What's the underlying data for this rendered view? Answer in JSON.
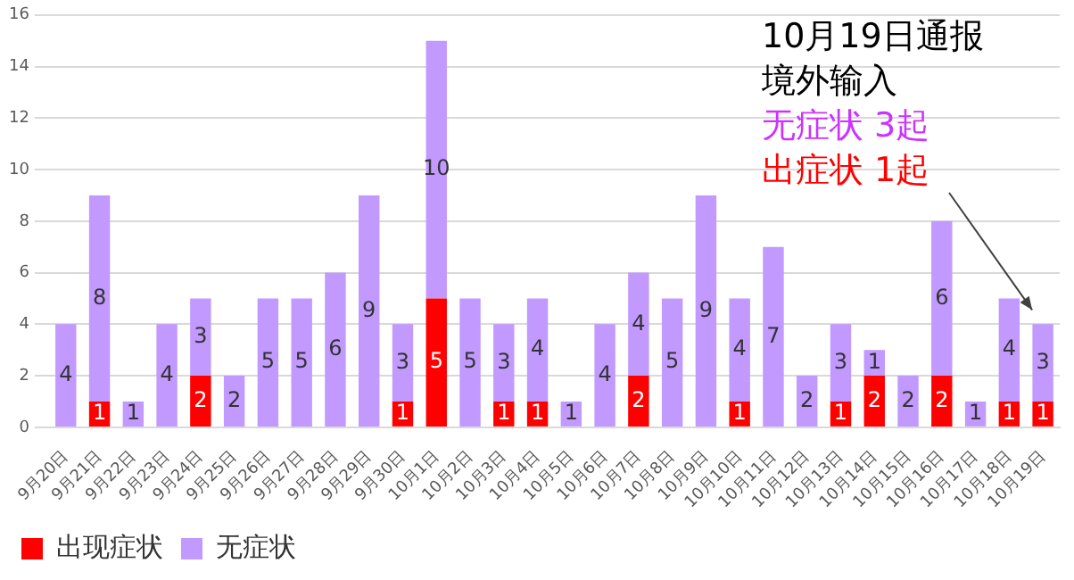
{
  "chart_data": {
    "type": "bar",
    "stacked": true,
    "data_labels": true,
    "grid": "y",
    "legend": "bottom left",
    "categories": [
      "9月20日",
      "9月21日",
      "9月22日",
      "9月23日",
      "9月24日",
      "9月25日",
      "9月26日",
      "9月27日",
      "9月28日",
      "9月29日",
      "9月30日",
      "10月1日",
      "10月2日",
      "10月3日",
      "10月4日",
      "10月5日",
      "10月6日",
      "10月7日",
      "10月8日",
      "10月9日",
      "10月10日",
      "10月11日",
      "10月12日",
      "10月13日",
      "10月14日",
      "10月15日",
      "10月16日",
      "10月17日",
      "10月18日",
      "10月19日"
    ],
    "series": [
      {
        "name": "出现症状",
        "color": "#ff0000",
        "values": [
          0,
          1,
          0,
          0,
          2,
          0,
          0,
          0,
          0,
          0,
          1,
          5,
          0,
          1,
          1,
          0,
          0,
          2,
          0,
          0,
          1,
          0,
          0,
          1,
          2,
          0,
          2,
          0,
          1,
          1
        ],
        "value_labels": [
          null,
          "1",
          null,
          null,
          "2",
          null,
          null,
          null,
          null,
          null,
          "1",
          "5",
          null,
          "1",
          "1",
          null,
          null,
          "2",
          null,
          null,
          "1",
          null,
          null,
          "1",
          "2",
          null,
          "2",
          null,
          "1",
          "1"
        ]
      },
      {
        "name": "无症状",
        "color": "#c299ff",
        "values": [
          4,
          8,
          1,
          4,
          3,
          2,
          5,
          5,
          6,
          9,
          3,
          10,
          5,
          3,
          4,
          1,
          4,
          4,
          5,
          9,
          4,
          7,
          2,
          3,
          1,
          2,
          6,
          1,
          4,
          3
        ]
      }
    ],
    "ylim": [
      0,
      16
    ],
    "yticks": [
      0,
      2,
      4,
      6,
      8,
      10,
      12,
      14,
      16
    ],
    "annotations": [
      "10月19日通报",
      "境外输入",
      "无症状 3起",
      "出症状 1起"
    ]
  }
}
